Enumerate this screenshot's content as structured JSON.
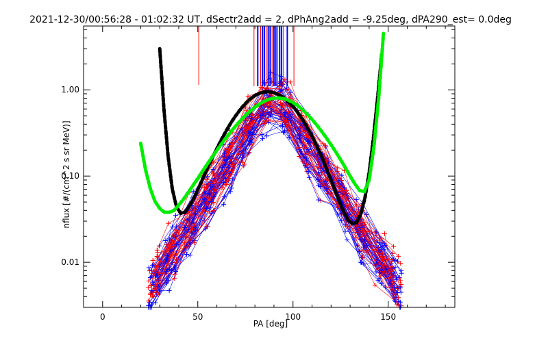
{
  "chart_data": {
    "type": "scatter",
    "title": "2021-12-30/00:56:28 - 01:02:32 UT, dSectr2add = 2, dPhAng2add = -9.25deg, dPA290_est=   0.0deg",
    "xlabel": "PA [deg]",
    "ylabel": "nflux [#/(cm^2 s sr MeV)]",
    "xlim": [
      -10,
      185
    ],
    "ylim": [
      0.003,
      5.5
    ],
    "yscale": "log",
    "xticks": [
      0,
      50,
      100,
      150
    ],
    "xtick_labels": [
      "0",
      "50",
      "100",
      "150"
    ],
    "yticks": [
      1.0,
      0.1,
      0.01
    ],
    "ytick_labels": [
      "1.00",
      "0.10",
      "0.01"
    ],
    "grid": false,
    "colors": {
      "red": "#ff0000",
      "blue": "#0000ff",
      "black": "#000000",
      "green": "#00ee00"
    },
    "fit_curves": [
      {
        "color": "black",
        "x": [
          30.0,
          32.2,
          34.4,
          36.6,
          38.8,
          41.0,
          43.2,
          45.4,
          47.6,
          49.8,
          52.0,
          54.2,
          56.4,
          58.6,
          60.8,
          63.0,
          65.2,
          67.4,
          69.6,
          71.8,
          74.0,
          76.2,
          78.4,
          80.6,
          82.8,
          85.0,
          87.2,
          89.4,
          91.6,
          93.8,
          96.0,
          98.2,
          100.4,
          102.6,
          104.8,
          107.0,
          109.2,
          111.4,
          113.6,
          115.8,
          118.0,
          120.2,
          122.4,
          124.6,
          126.8,
          129.0,
          131.2,
          133.4,
          135.6,
          137.8,
          140.0,
          142.2,
          144.4,
          146.6,
          148.8
        ],
        "y": [
          3.0,
          0.6,
          0.17,
          0.071,
          0.044,
          0.037,
          0.038,
          0.044,
          0.054,
          0.068,
          0.087,
          0.112,
          0.143,
          0.18,
          0.226,
          0.28,
          0.343,
          0.414,
          0.49,
          0.572,
          0.655,
          0.737,
          0.812,
          0.874,
          0.919,
          0.944,
          0.949,
          0.933,
          0.898,
          0.846,
          0.781,
          0.706,
          0.625,
          0.542,
          0.461,
          0.384,
          0.314,
          0.252,
          0.198,
          0.153,
          0.116,
          0.087,
          0.065,
          0.049,
          0.038,
          0.031,
          0.028,
          0.029,
          0.036,
          0.056,
          0.11,
          0.27,
          0.8,
          2.6,
          9.5
        ]
      },
      {
        "color": "green",
        "x": [
          20.0,
          22.5,
          25.0,
          27.5,
          30.0,
          32.5,
          35.0,
          37.5,
          40.0,
          42.5,
          45.0,
          47.5,
          50.0,
          52.5,
          55.0,
          57.5,
          60.0,
          62.5,
          65.0,
          67.5,
          70.0,
          72.5,
          75.0,
          77.5,
          80.0,
          82.5,
          85.0,
          87.5,
          90.0,
          92.5,
          95.0,
          97.5,
          100.0,
          102.5,
          105.0,
          107.5,
          110.0,
          112.5,
          115.0,
          117.5,
          120.0,
          122.5,
          125.0,
          127.5,
          130.0,
          132.5,
          135.0,
          137.5,
          140.0,
          142.5,
          145.0,
          147.5
        ],
        "y": [
          0.24,
          0.12,
          0.072,
          0.051,
          0.042,
          0.038,
          0.038,
          0.04,
          0.046,
          0.054,
          0.065,
          0.078,
          0.094,
          0.114,
          0.138,
          0.166,
          0.199,
          0.237,
          0.281,
          0.33,
          0.384,
          0.443,
          0.505,
          0.568,
          0.63,
          0.688,
          0.738,
          0.777,
          0.8,
          0.806,
          0.792,
          0.76,
          0.713,
          0.655,
          0.589,
          0.521,
          0.454,
          0.39,
          0.331,
          0.278,
          0.231,
          0.19,
          0.155,
          0.125,
          0.1,
          0.081,
          0.068,
          0.066,
          0.09,
          0.22,
          0.8,
          4.5
        ]
      }
    ]
  }
}
